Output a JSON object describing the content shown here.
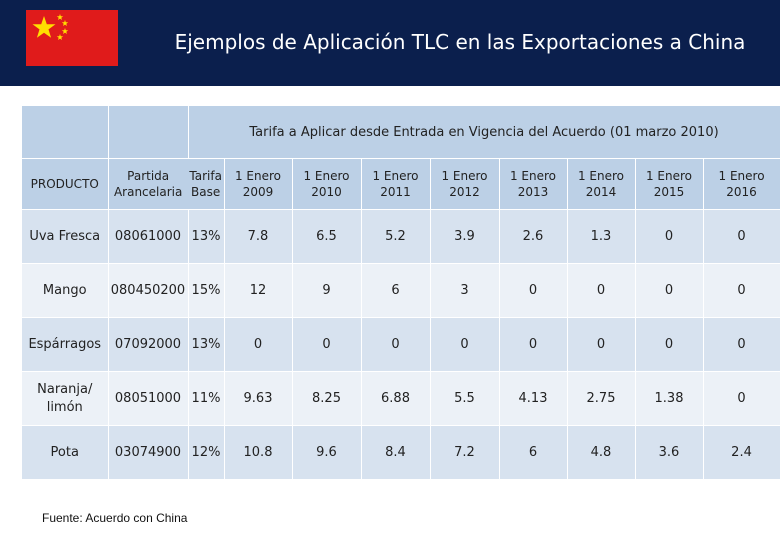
{
  "header": {
    "title": "Ejemplos de Aplicación TLC en las Exportaciones a China",
    "background": "#0b1f4d"
  },
  "flag": {
    "icon": "china-flag-icon",
    "red": "#e01b1b",
    "yellow": "#ffde00"
  },
  "table": {
    "span_header": "Tarifa a Aplicar desde Entrada en Vigencia del Acuerdo (01 marzo 2010)",
    "columns": {
      "producto": "PRODUCTO",
      "partida_1": "Partida",
      "partida_2": "Arancelaria",
      "tarifa_1": "Tarifa",
      "tarifa_2": "Base",
      "years": [
        {
          "line1": "1 Enero",
          "line2": "2009"
        },
        {
          "line1": "1 Enero",
          "line2": "2010"
        },
        {
          "line1": "1 Enero",
          "line2": "2011"
        },
        {
          "line1": "1 Enero",
          "line2": "2012"
        },
        {
          "line1": "1 Enero",
          "line2": "2013"
        },
        {
          "line1": "1 Enero",
          "line2": "2014"
        },
        {
          "line1": "1 Enero",
          "line2": "2015"
        },
        {
          "line1": "1 Enero",
          "line2": "2016"
        }
      ]
    },
    "rows": [
      {
        "producto": "Uva Fresca",
        "partida": "08061000",
        "tarifa": "13%",
        "values": [
          "7.8",
          "6.5",
          "5.2",
          "3.9",
          "2.6",
          "1.3",
          "0",
          "0"
        ]
      },
      {
        "producto": "Mango",
        "partida": "080450200",
        "tarifa": "15%",
        "values": [
          "12",
          "9",
          "6",
          "3",
          "0",
          "0",
          "0",
          "0"
        ]
      },
      {
        "producto": "Espárragos",
        "partida": "07092000",
        "tarifa": "13%",
        "values": [
          "0",
          "0",
          "0",
          "0",
          "0",
          "0",
          "0",
          "0"
        ]
      },
      {
        "producto": "Naranja/ limón",
        "partida": "08051000",
        "tarifa": "11%",
        "values": [
          "9.63",
          "8.25",
          "6.88",
          "5.5",
          "4.13",
          "2.75",
          "1.38",
          "0"
        ]
      },
      {
        "producto": "Pota",
        "partida": "03074900",
        "tarifa": "12%",
        "values": [
          "10.8",
          "9.6",
          "8.4",
          "7.2",
          "6",
          "4.8",
          "3.6",
          "2.4"
        ]
      }
    ]
  },
  "source": "Fuente: Acuerdo con China"
}
